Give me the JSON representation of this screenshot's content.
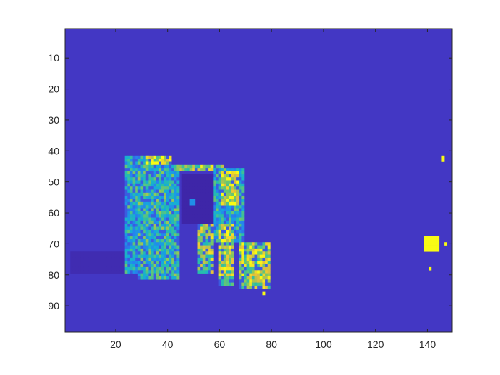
{
  "chart_data": {
    "type": "heatmap",
    "title": "",
    "xlabel": "",
    "ylabel": "",
    "xlim": [
      0.5,
      149.5
    ],
    "ylim": [
      0.5,
      98.5
    ],
    "y_direction": "reverse",
    "grid": false,
    "colormap": "parula",
    "x_ticks": [
      20,
      40,
      60,
      80,
      100,
      120,
      140
    ],
    "y_ticks": [
      10,
      20,
      30,
      40,
      50,
      60,
      70,
      80,
      90
    ],
    "background_value": 0.06,
    "value_scale": [
      0,
      1
    ],
    "regions": [
      {
        "name": "dark-patch",
        "value": 0.02,
        "x": [
          3,
          24
        ],
        "y": [
          73,
          80
        ]
      },
      {
        "name": "body-interior",
        "value": 0.0,
        "x": [
          46,
          61
        ],
        "y": [
          48,
          64
        ]
      },
      {
        "name": "body-outline-top",
        "value": 0.75,
        "x": [
          38,
          62
        ],
        "y": [
          45,
          47
        ]
      },
      {
        "name": "chest-dither",
        "value": 0.45,
        "x": [
          24,
          33
        ],
        "y": [
          42,
          80
        ]
      },
      {
        "name": "shoulder-bright",
        "value": 0.85,
        "x": [
          32,
          42
        ],
        "y": [
          42,
          66
        ]
      },
      {
        "name": "neck-region",
        "value": 0.5,
        "x": [
          29,
          45
        ],
        "y": [
          45,
          82
        ]
      },
      {
        "name": "head-region",
        "value": 0.45,
        "x": [
          58,
          70
        ],
        "y": [
          46,
          70
        ]
      },
      {
        "name": "head-bright",
        "value": 0.85,
        "x": [
          61,
          68
        ],
        "y": [
          47,
          58
        ]
      },
      {
        "name": "leg-left",
        "value": 0.7,
        "x": [
          52,
          58
        ],
        "y": [
          64,
          80
        ]
      },
      {
        "name": "leg-mid",
        "value": 0.75,
        "x": [
          60,
          66
        ],
        "y": [
          64,
          84
        ]
      },
      {
        "name": "leg-right",
        "value": 0.8,
        "x": [
          68,
          80
        ],
        "y": [
          70,
          85
        ]
      },
      {
        "name": "ear",
        "value": 0.3,
        "x": [
          49,
          51
        ],
        "y": [
          56,
          58
        ]
      },
      {
        "name": "yellow-blob",
        "value": 1.0,
        "x": [
          139,
          145
        ],
        "y": [
          68,
          73
        ]
      },
      {
        "name": "yellow-dot-1",
        "value": 1.0,
        "x": [
          146,
          147
        ],
        "y": [
          42,
          44
        ]
      },
      {
        "name": "yellow-dot-2",
        "value": 1.0,
        "x": [
          141,
          142
        ],
        "y": [
          78,
          79
        ]
      },
      {
        "name": "yellow-dot-3",
        "value": 1.0,
        "x": [
          77,
          78
        ],
        "y": [
          86,
          87
        ]
      },
      {
        "name": "yellow-dot-4",
        "value": 1.0,
        "x": [
          147,
          148
        ],
        "y": [
          70,
          71
        ]
      }
    ]
  }
}
